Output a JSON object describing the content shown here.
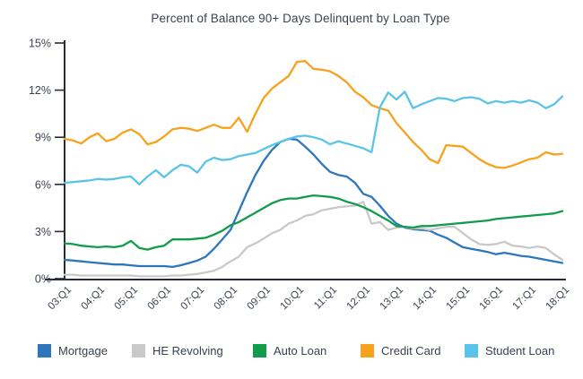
{
  "page": {
    "background": "#ffffff"
  },
  "chart_data": {
    "type": "line",
    "title": "Percent of Balance 90+ Days Delinquent by Loan Type",
    "grid": false,
    "legend_position": "bottom",
    "x_axis": {
      "labels": [
        "03:Q1",
        "04:Q1",
        "05:Q1",
        "06:Q1",
        "07:Q1",
        "08:Q1",
        "09:Q1",
        "10:Q1",
        "11:Q1",
        "12:Q1",
        "13:Q1",
        "14:Q1",
        "15:Q1",
        "16:Q1",
        "17:Q1",
        "18:Q1"
      ],
      "quarters_per_label": 4,
      "total_points": 61
    },
    "y_axis": {
      "tick_labels": [
        "0%",
        "3%",
        "6%",
        "9%",
        "12%",
        "15%"
      ],
      "tick_values": [
        0,
        3,
        6,
        9,
        12,
        15
      ],
      "min": 0,
      "max": 15,
      "unit": "percent"
    },
    "series": [
      {
        "name": "Mortgage",
        "color": "#2e76bc",
        "values": [
          1.2,
          1.15,
          1.1,
          1.05,
          1.0,
          0.95,
          0.9,
          0.9,
          0.85,
          0.8,
          0.8,
          0.8,
          0.8,
          0.75,
          0.85,
          1.0,
          1.15,
          1.4,
          1.9,
          2.5,
          3.1,
          4.3,
          5.5,
          6.6,
          7.5,
          8.2,
          8.7,
          8.9,
          8.85,
          8.4,
          7.9,
          7.3,
          6.8,
          6.6,
          6.5,
          6.1,
          5.4,
          5.2,
          4.65,
          4.0,
          3.5,
          3.25,
          3.15,
          3.1,
          3.05,
          2.8,
          2.6,
          2.3,
          2.0,
          1.9,
          1.8,
          1.7,
          1.55,
          1.65,
          1.55,
          1.45,
          1.4,
          1.3,
          1.2,
          1.1,
          1.0
        ]
      },
      {
        "name": "HE Revolving",
        "color": "#c9c9c9",
        "values": [
          0.25,
          0.25,
          0.2,
          0.2,
          0.2,
          0.2,
          0.2,
          0.2,
          0.2,
          0.15,
          0.15,
          0.15,
          0.15,
          0.2,
          0.2,
          0.25,
          0.3,
          0.4,
          0.5,
          0.75,
          1.1,
          1.4,
          2.0,
          2.25,
          2.55,
          2.9,
          3.1,
          3.5,
          3.7,
          4.0,
          4.1,
          4.35,
          4.45,
          4.55,
          4.6,
          4.65,
          4.9,
          3.5,
          3.6,
          3.1,
          3.25,
          3.3,
          3.2,
          3.2,
          3.1,
          3.2,
          3.3,
          3.3,
          2.9,
          2.5,
          2.2,
          2.15,
          2.2,
          2.35,
          2.1,
          2.05,
          1.95,
          2.05,
          1.95,
          1.55,
          1.2
        ]
      },
      {
        "name": "Auto Loan",
        "color": "#109c4b",
        "values": [
          2.25,
          2.2,
          2.1,
          2.05,
          2.0,
          2.05,
          2.0,
          2.1,
          2.4,
          1.95,
          1.85,
          2.0,
          2.1,
          2.5,
          2.5,
          2.5,
          2.55,
          2.6,
          2.8,
          3.05,
          3.4,
          3.6,
          3.9,
          4.2,
          4.5,
          4.8,
          5.0,
          5.1,
          5.1,
          5.2,
          5.3,
          5.25,
          5.2,
          5.1,
          4.9,
          4.75,
          4.55,
          4.3,
          4.0,
          3.7,
          3.35,
          3.3,
          3.25,
          3.35,
          3.35,
          3.4,
          3.45,
          3.5,
          3.55,
          3.6,
          3.65,
          3.7,
          3.8,
          3.85,
          3.9,
          3.95,
          4.0,
          4.05,
          4.1,
          4.15,
          4.3
        ]
      },
      {
        "name": "Credit Card",
        "color": "#f6a21c",
        "values": [
          8.9,
          8.8,
          8.6,
          9.0,
          9.25,
          8.75,
          8.9,
          9.3,
          9.5,
          9.2,
          8.55,
          8.7,
          9.05,
          9.5,
          9.6,
          9.55,
          9.4,
          9.6,
          9.8,
          9.6,
          9.6,
          10.25,
          9.35,
          10.5,
          11.5,
          12.1,
          12.5,
          12.9,
          13.8,
          13.85,
          13.35,
          13.3,
          13.2,
          12.9,
          12.5,
          11.9,
          11.55,
          11.05,
          10.85,
          10.7,
          9.9,
          9.3,
          8.7,
          8.2,
          7.6,
          7.35,
          8.5,
          8.45,
          8.4,
          8.0,
          7.6,
          7.3,
          7.1,
          7.05,
          7.2,
          7.4,
          7.6,
          7.7,
          8.05,
          7.9,
          7.95
        ]
      },
      {
        "name": "Student Loan",
        "color": "#5ac4e8",
        "values": [
          6.1,
          6.15,
          6.2,
          6.25,
          6.35,
          6.3,
          6.35,
          6.45,
          6.5,
          6.0,
          6.5,
          6.9,
          6.45,
          6.9,
          7.25,
          7.15,
          6.75,
          7.45,
          7.7,
          7.55,
          7.6,
          7.8,
          7.9,
          8.0,
          8.25,
          8.5,
          8.7,
          8.9,
          9.05,
          9.1,
          9.0,
          8.85,
          8.55,
          8.75,
          8.6,
          8.45,
          8.3,
          8.05,
          10.9,
          11.85,
          11.4,
          11.9,
          10.85,
          11.1,
          11.3,
          11.5,
          11.45,
          11.3,
          11.5,
          11.55,
          11.45,
          11.15,
          11.3,
          11.2,
          11.3,
          11.2,
          11.35,
          11.2,
          10.85,
          11.1,
          11.6
        ]
      }
    ]
  },
  "colors": {
    "axis_line": "#272b33",
    "tick_text": "#3a4250",
    "title_text": "#3c4450",
    "legend_text": "#39414e"
  }
}
